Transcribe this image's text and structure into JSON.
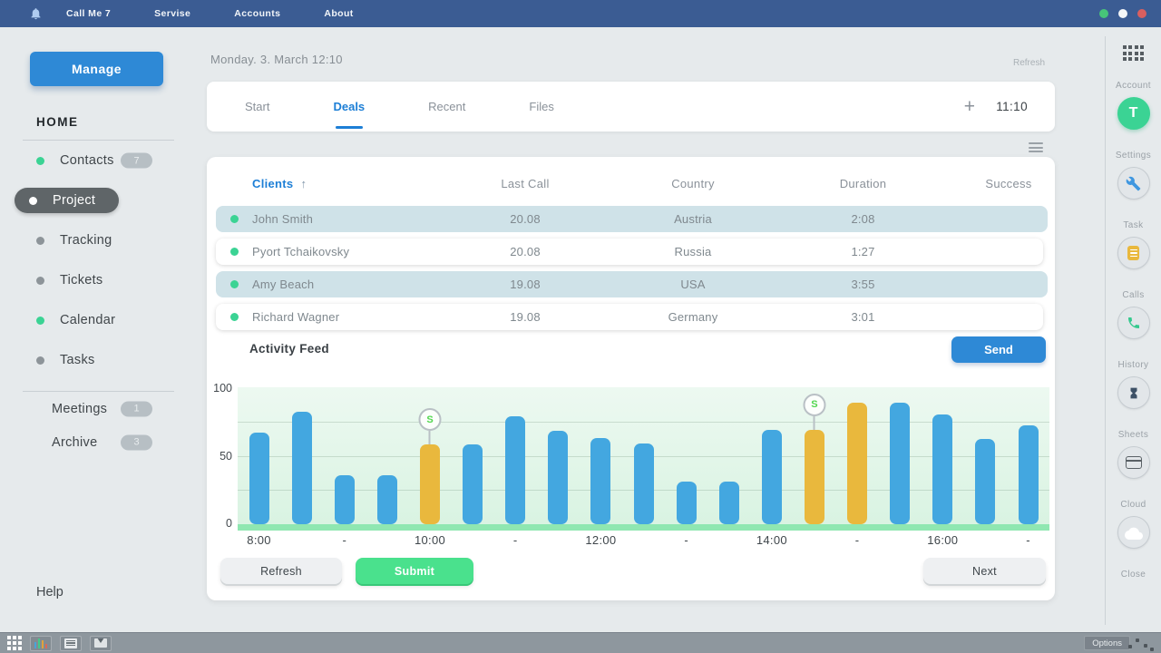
{
  "topbar": {
    "app_icon": "bell-icon",
    "menus": [
      "Call Me 7",
      "Servise",
      "Accounts",
      "About"
    ],
    "window_controls": [
      "green",
      "white",
      "red"
    ]
  },
  "left_sidebar": {
    "manage_button": "Manage",
    "section_title": "HOME",
    "items": [
      {
        "label": "Contacts",
        "dot": "green",
        "badge": "7",
        "active": false
      },
      {
        "label": "Project",
        "dot": "white",
        "badge": null,
        "active": true
      },
      {
        "label": "Tracking",
        "dot": "gray",
        "badge": null,
        "active": false
      },
      {
        "label": "Tickets",
        "dot": "gray",
        "badge": null,
        "active": false
      },
      {
        "label": "Calendar",
        "dot": "green",
        "badge": null,
        "active": false
      },
      {
        "label": "Tasks",
        "dot": "gray",
        "badge": null,
        "active": false
      }
    ],
    "sub_items": [
      {
        "label": "Meetings",
        "badge": "1"
      },
      {
        "label": "Archive",
        "badge": "3"
      }
    ],
    "help_label": "Help"
  },
  "main_header": {
    "date": "Monday. 3. March 12:10",
    "refresh_link": "Refresh",
    "tabs": [
      "Start",
      "Deals",
      "Recent",
      "Files"
    ],
    "active_tab": "Deals",
    "plus_icon": "+",
    "time": "11:10"
  },
  "table": {
    "headers": [
      "Clients",
      "Last Call",
      "Country",
      "Duration",
      "Success"
    ],
    "sort_arrow": "↑",
    "rows": [
      {
        "name": "John Smith",
        "last_call": "20.08",
        "country": "Austria",
        "duration": "2:08",
        "success": "green",
        "highlighted": true
      },
      {
        "name": "Pyort Tchaikovsky",
        "last_call": "20.08",
        "country": "Russia",
        "duration": "1:27",
        "success": "yellow",
        "highlighted": false
      },
      {
        "name": "Amy Beach",
        "last_call": "19.08",
        "country": "USA",
        "duration": "3:55",
        "success": "none",
        "highlighted": true
      },
      {
        "name": "Richard Wagner",
        "last_call": "19.08",
        "country": "Germany",
        "duration": "3:01",
        "success": "dark",
        "highlighted": false
      }
    ]
  },
  "activity": {
    "title": "Activity Feed",
    "send_button": "Send"
  },
  "chart_data": {
    "type": "bar",
    "title": "Activity Feed",
    "ylim": [
      0,
      100
    ],
    "y_ticks": [
      0,
      50,
      100
    ],
    "gridlines": [
      25,
      50,
      75
    ],
    "marker_symbol": "S",
    "bars": [
      {
        "value": 67,
        "color": "blue",
        "tick": "8:00",
        "marker": null
      },
      {
        "value": 82,
        "color": "blue",
        "tick": "",
        "marker": null
      },
      {
        "value": 36,
        "color": "blue",
        "tick": "-",
        "marker": null
      },
      {
        "value": 36,
        "color": "blue",
        "tick": "",
        "marker": null
      },
      {
        "value": 58,
        "color": "yellow",
        "tick": "10:00",
        "marker": "S"
      },
      {
        "value": 58,
        "color": "blue",
        "tick": "",
        "marker": null
      },
      {
        "value": 79,
        "color": "blue",
        "tick": "-",
        "marker": null
      },
      {
        "value": 68,
        "color": "blue",
        "tick": "",
        "marker": null
      },
      {
        "value": 63,
        "color": "blue",
        "tick": "12:00",
        "marker": null
      },
      {
        "value": 59,
        "color": "blue",
        "tick": "",
        "marker": null
      },
      {
        "value": 31,
        "color": "blue",
        "tick": "-",
        "marker": null
      },
      {
        "value": 31,
        "color": "blue",
        "tick": "",
        "marker": null
      },
      {
        "value": 69,
        "color": "blue",
        "tick": "14:00",
        "marker": null
      },
      {
        "value": 69,
        "color": "yellow",
        "tick": "",
        "marker": "S"
      },
      {
        "value": 89,
        "color": "yellow",
        "tick": "-",
        "marker": null
      },
      {
        "value": 89,
        "color": "blue",
        "tick": "",
        "marker": null
      },
      {
        "value": 80,
        "color": "blue",
        "tick": "16:00",
        "marker": null
      },
      {
        "value": 62,
        "color": "blue",
        "tick": "",
        "marker": null
      },
      {
        "value": 72,
        "color": "blue",
        "tick": "-",
        "marker": null
      }
    ]
  },
  "footer_buttons": {
    "refresh": "Refresh",
    "submit": "Submit",
    "next": "Next"
  },
  "right_rail": {
    "items": [
      {
        "label": "Account",
        "icon": "avatar",
        "letter": "T"
      },
      {
        "label": "Settings",
        "icon": "wrench"
      },
      {
        "label": "Task",
        "icon": "task-list"
      },
      {
        "label": "Calls",
        "icon": "phone"
      },
      {
        "label": "History",
        "icon": "hourglass"
      },
      {
        "label": "Sheets",
        "icon": "sheet"
      },
      {
        "label": "Cloud",
        "icon": "cloud"
      },
      {
        "label": "Close",
        "icon": null
      }
    ]
  },
  "taskbar": {
    "options_button": "Options"
  },
  "colors": {
    "topbar": "#3b5c93",
    "accent_blue": "#2e89d6",
    "active_tab_blue": "#1d7fd6",
    "green_dot": "#3bd394",
    "submit_green": "#4ae18d",
    "bar_blue": "#43a7e0",
    "bar_yellow": "#e9b83d",
    "success_green": "#2ecf96",
    "success_yellow": "#e9b83d",
    "success_dark": "#63686c",
    "row_highlight": "#cfe2e8"
  }
}
